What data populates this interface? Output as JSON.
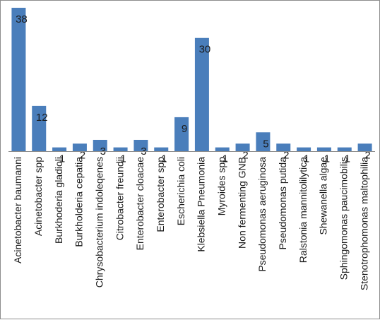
{
  "chart_data": {
    "type": "bar",
    "title": "",
    "xlabel": "",
    "ylabel": "",
    "ylim": [
      0,
      38
    ],
    "grid": false,
    "colors": {
      "bar": "#4a7ebb"
    },
    "categories": [
      "Acinetobacter baumanni",
      "Acinetobacter spp",
      "Burkhoderia gladioli",
      "Burkholderia cepatia",
      "Chrysobacterium indoleqenes",
      "Citrobacter freundii",
      "Enterobacter cloacae",
      "Enterobacter spp",
      "Escherichia coli",
      "Klebsiella Pneumonia",
      "Myroides spp",
      "Non fermenting GNB",
      "Pseudomonas aeruginosa",
      "Pseudomonas putida",
      "Ralstonia mannitolilytica",
      "Shewanella algae",
      "Sphingomonas paucimobilis",
      "Stenotrophomonas maltophilia"
    ],
    "values": [
      38,
      12,
      1,
      2,
      3,
      1,
      3,
      1,
      9,
      30,
      1,
      2,
      5,
      2,
      1,
      1,
      1,
      2
    ]
  }
}
